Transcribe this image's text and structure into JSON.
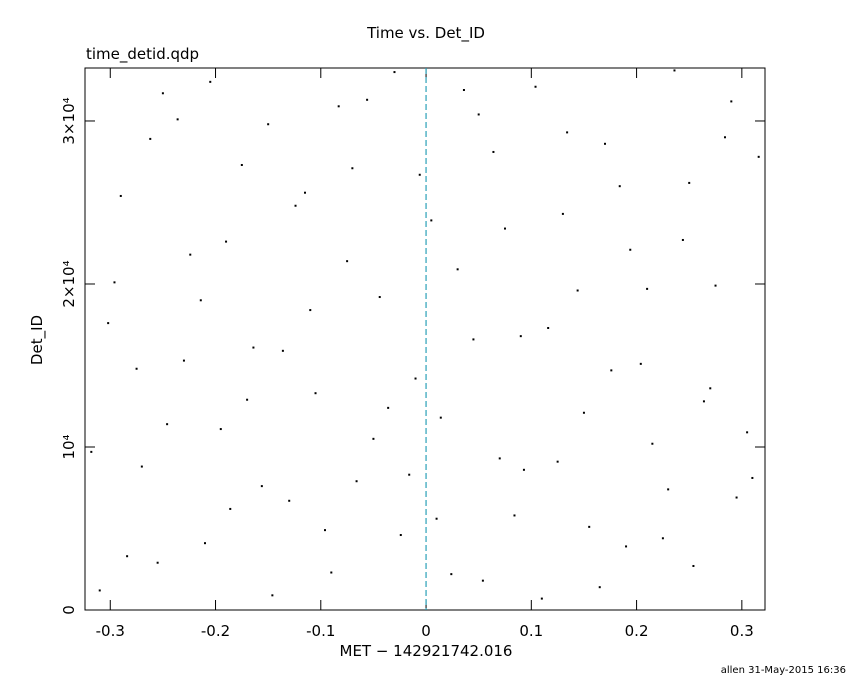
{
  "chart_data": {
    "type": "scatter",
    "title": "Time vs. Det_ID",
    "subtitle": "time_detid.qdp",
    "x_label": "MET − 142921742.016",
    "y_label": "Det_ID",
    "footer": "allen 31-May-2015 16:36",
    "xlim": [
      -0.324,
      0.322
    ],
    "ylim": [
      0,
      33250
    ],
    "xticks": [
      -0.3,
      -0.2,
      -0.1,
      0,
      0.1,
      0.2,
      0.3
    ],
    "yticks": [
      0,
      {
        "value": 10000,
        "label": "10⁴"
      },
      {
        "value": 20000,
        "label": "2×10⁴"
      },
      {
        "value": 30000,
        "label": "3×10⁴"
      }
    ],
    "vline": {
      "x": 0,
      "color": "#2aa0b8"
    },
    "series": [
      {
        "name": "Det_ID",
        "color": "#000000",
        "x": [
          -0.31,
          -0.29,
          -0.27,
          -0.25,
          -0.23,
          -0.21,
          -0.19,
          -0.17,
          -0.15,
          -0.13,
          -0.11,
          -0.09,
          -0.07,
          -0.05,
          -0.03,
          -0.01,
          0.01,
          0.03,
          0.05,
          0.07,
          0.09,
          0.11,
          0.13,
          0.15,
          0.17,
          0.19,
          0.21,
          0.23,
          0.25,
          0.27,
          0.29,
          0.31,
          -0.302,
          -0.284,
          -0.262,
          -0.246,
          -0.224,
          -0.205,
          -0.186,
          -0.164,
          -0.146,
          -0.124,
          -0.105,
          -0.083,
          -0.066,
          -0.044,
          -0.024,
          -0.006,
          0.014,
          0.036,
          0.054,
          0.075,
          0.093,
          0.116,
          0.134,
          0.155,
          0.176,
          0.194,
          0.215,
          0.236,
          0.254,
          0.275,
          0.295,
          0.316,
          -0.318,
          -0.296,
          -0.275,
          -0.255,
          -0.236,
          -0.214,
          -0.195,
          -0.175,
          -0.156,
          -0.136,
          -0.115,
          -0.096,
          -0.075,
          -0.056,
          -0.036,
          -0.016,
          0.005,
          0.024,
          0.045,
          0.064,
          0.084,
          0.104,
          0.125,
          0.144,
          0.165,
          0.184,
          0.204,
          0.225,
          0.244,
          0.264,
          0.284,
          0.305
        ],
        "values": [
          1200,
          25400,
          8800,
          31700,
          15300,
          4100,
          22600,
          12900,
          29800,
          6700,
          18400,
          2300,
          27100,
          10500,
          33000,
          14200,
          5600,
          20900,
          30400,
          9300,
          16800,
          700,
          24300,
          12100,
          28600,
          3900,
          19700,
          7400,
          26200,
          13600,
          31200,
          8100,
          17600,
          3300,
          28900,
          11400,
          21800,
          32400,
          6200,
          16100,
          900,
          24800,
          13300,
          30900,
          7900,
          19200,
          4600,
          26700,
          11800,
          31900,
          1800,
          23400,
          8600,
          17300,
          29300,
          5100,
          14700,
          22100,
          10200,
          33100,
          2700,
          19900,
          6900,
          27800,
          9700,
          20100,
          14800,
          2900,
          30100,
          19000,
          11100,
          27300,
          7600,
          15900,
          25600,
          4900,
          21400,
          31300,
          12400,
          8300,
          23900,
          2200,
          16600,
          28100,
          5800,
          32100,
          9100,
          19600,
          1400,
          26000,
          15100,
          4400,
          22700,
          12800,
          29000,
          10900
        ]
      }
    ]
  }
}
